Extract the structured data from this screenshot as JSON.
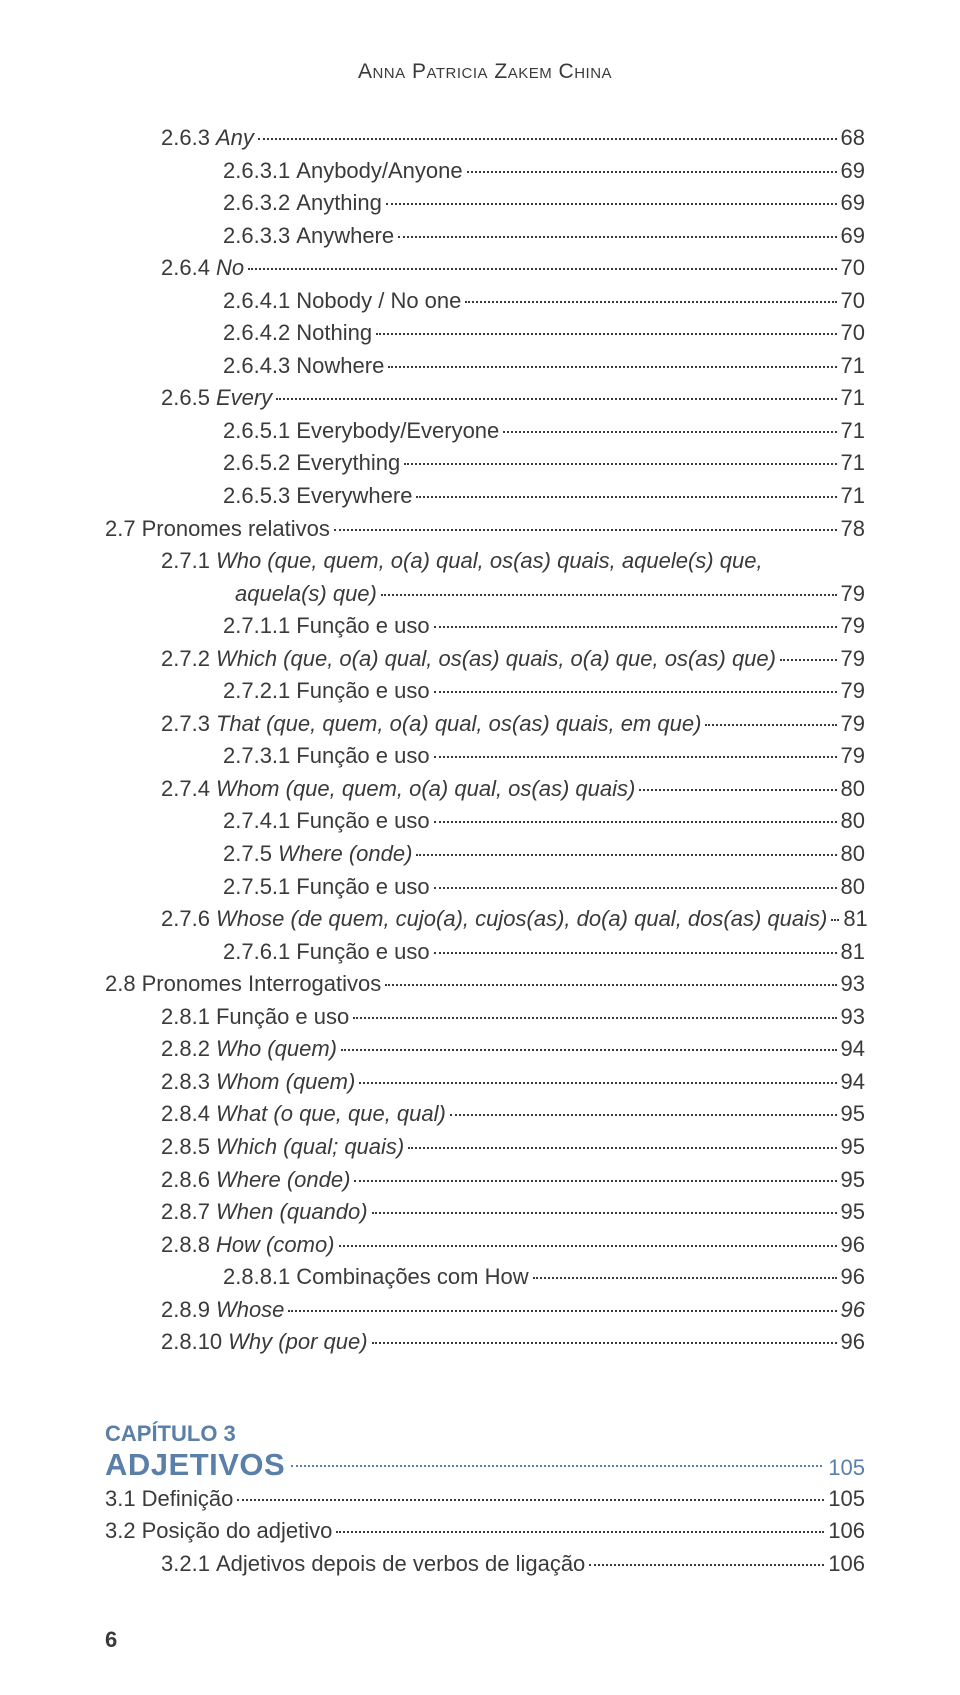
{
  "author": "Anna Patricia Zakem China",
  "page_number": "6",
  "toc": [
    {
      "lvl": 3,
      "num": "2.6.3",
      "title": "Any",
      "pg": "68",
      "italic": true
    },
    {
      "lvl": 4,
      "num": "2.6.3.1",
      "title": "Anybody/Anyone",
      "pg": "69"
    },
    {
      "lvl": 4,
      "num": "2.6.3.2",
      "title": "Anything",
      "pg": "69"
    },
    {
      "lvl": 4,
      "num": "2.6.3.3",
      "title": "Anywhere",
      "pg": "69"
    },
    {
      "lvl": 3,
      "num": "2.6.4",
      "title": "No",
      "pg": "70",
      "italic": true
    },
    {
      "lvl": 4,
      "num": "2.6.4.1",
      "title": "Nobody / No one",
      "pg": "70"
    },
    {
      "lvl": 4,
      "num": "2.6.4.2",
      "title": "Nothing",
      "pg": "70"
    },
    {
      "lvl": 4,
      "num": "2.6.4.3",
      "title": "Nowhere",
      "pg": "71"
    },
    {
      "lvl": 3,
      "num": "2.6.5",
      "title": "Every",
      "pg": "71",
      "italic": true
    },
    {
      "lvl": 4,
      "num": "2.6.5.1",
      "title": "Everybody/Everyone",
      "pg": "71"
    },
    {
      "lvl": 4,
      "num": "2.6.5.2",
      "title": "Everything",
      "pg": "71"
    },
    {
      "lvl": 4,
      "num": "2.6.5.3",
      "title": "Everywhere",
      "pg": "71"
    },
    {
      "lvl": 2,
      "num": "2.7",
      "title": "Pronomes relativos",
      "pg": "78"
    },
    {
      "lvl": 3,
      "num": "2.7.1",
      "title": "Who (que, quem, o(a) qual, os(as) quais, aquele(s) que,",
      "pg": "",
      "italic": true,
      "nowrap_break": true
    },
    {
      "lvl": 0,
      "num": "",
      "title": "aquela(s) que)",
      "pg": "79",
      "italic": true,
      "continuation": true
    },
    {
      "lvl": 4,
      "num": "2.7.1.1",
      "title": "Função e uso",
      "pg": "79"
    },
    {
      "lvl": 3,
      "num": "2.7.2",
      "title": "Which (que, o(a) qual, os(as) quais, o(a) que, os(as) que)",
      "pg": "79",
      "italic": true
    },
    {
      "lvl": 4,
      "num": "2.7.2.1",
      "title": "Função e uso",
      "pg": "79"
    },
    {
      "lvl": 3,
      "num": "2.7.3",
      "title": "That (que, quem, o(a) qual, os(as) quais, em que)",
      "pg": "79",
      "italic": true
    },
    {
      "lvl": 4,
      "num": "2.7.3.1",
      "title": "Função e uso",
      "pg": "79"
    },
    {
      "lvl": 3,
      "num": "2.7.4",
      "title": "Whom (que, quem, o(a) qual, os(as) quais)",
      "pg": "80",
      "italic": true
    },
    {
      "lvl": 4,
      "num": "2.7.4.1",
      "title": "Função e uso",
      "pg": "80"
    },
    {
      "lvl": 4,
      "num": "2.7.5",
      "title": "Where (onde)",
      "pg": "80",
      "italic": true
    },
    {
      "lvl": 4,
      "num": "2.7.5.1",
      "title": "Função e uso",
      "pg": "80"
    },
    {
      "lvl": 3,
      "num": "2.7.6",
      "title": "Whose (de quem, cujo(a), cujos(as), do(a) qual, dos(as) quais)",
      "pg": "81",
      "italic": true
    },
    {
      "lvl": 4,
      "num": "2.7.6.1",
      "title": "Função e uso",
      "pg": "81"
    },
    {
      "lvl": 2,
      "num": "2.8",
      "title": "Pronomes Interrogativos",
      "pg": "93"
    },
    {
      "lvl": 3,
      "num": "2.8.1",
      "title": "Função e uso",
      "pg": "93"
    },
    {
      "lvl": 3,
      "num": "2.8.2",
      "title": "Who (quem)",
      "pg": "94",
      "italic": true
    },
    {
      "lvl": 3,
      "num": "2.8.3",
      "title": "Whom (quem)",
      "pg": "94",
      "italic": true
    },
    {
      "lvl": 3,
      "num": "2.8.4",
      "title": "What (o que, que, qual)",
      "pg": "95",
      "italic": true
    },
    {
      "lvl": 3,
      "num": "2.8.5",
      "title": "Which (qual; quais)",
      "pg": "95",
      "italic": true
    },
    {
      "lvl": 3,
      "num": "2.8.6",
      "title": "Where (onde)",
      "pg": "95",
      "italic": true
    },
    {
      "lvl": 3,
      "num": "2.8.7",
      "title": "When (quando)",
      "pg": "95",
      "italic": true
    },
    {
      "lvl": 3,
      "num": "2.8.8",
      "title": "How (como)",
      "pg": "96",
      "italic": true
    },
    {
      "lvl": 4,
      "num": "2.8.8.1",
      "title": "Combinações com How",
      "pg": "96"
    },
    {
      "lvl": 3,
      "num": "2.8.9",
      "title": "Whose",
      "pg": "96",
      "italic": true,
      "pg_italic": true
    },
    {
      "lvl": 3,
      "num": "2.8.10",
      "title": "Why (por que)",
      "pg": "96",
      "italic": true
    }
  ],
  "chapter": {
    "label": "CAPÍTULO 3",
    "title": "ADJETIVOS",
    "pg": "105",
    "items": [
      {
        "lvl": 2,
        "num": "3.1",
        "title": "Definição",
        "pg": "105"
      },
      {
        "lvl": 2,
        "num": "3.2",
        "title": "Posição do adjetivo",
        "pg": "106"
      },
      {
        "lvl": 3,
        "num": "3.2.1",
        "title": "Adjetivos depois de verbos de ligação",
        "pg": "106"
      }
    ]
  },
  "colors": {
    "text": "#3a3a3a",
    "accent": "#5a7fa8",
    "background": "#ffffff"
  }
}
